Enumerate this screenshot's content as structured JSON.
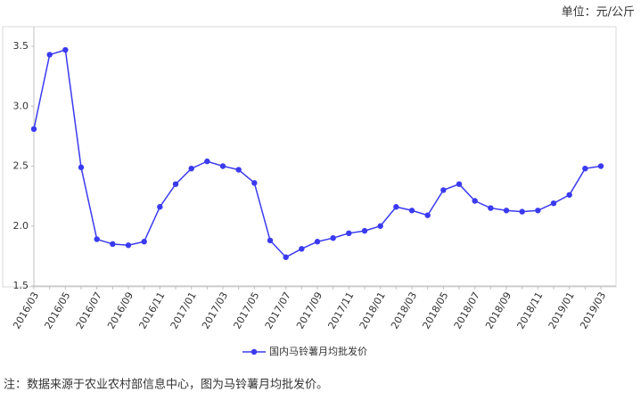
{
  "chart_data": {
    "type": "line",
    "unit_label": "单位：元/公斤",
    "note": "注：数据来源于农业农村部信息中心，图为马铃薯月均批发价。",
    "categories": [
      "2016/03",
      null,
      "2016/05",
      null,
      "2016/07",
      null,
      "2016/09",
      null,
      "2016/11",
      null,
      "2017/01",
      null,
      "2017/03",
      null,
      "2017/05",
      null,
      "2017/07",
      null,
      "2017/09",
      null,
      "2017/11",
      null,
      "2018/01",
      null,
      "2018/03",
      null,
      "2018/05",
      null,
      "2018/07",
      null,
      "2018/09",
      null,
      "2018/11",
      null,
      "2019/01",
      null,
      "2019/03"
    ],
    "series": [
      {
        "name": "国内马铃薯月均批发价",
        "color": "#3a3af0",
        "values": [
          2.81,
          3.43,
          3.47,
          2.49,
          1.89,
          1.85,
          1.84,
          1.87,
          2.16,
          2.35,
          2.48,
          2.54,
          2.5,
          2.47,
          2.36,
          1.88,
          1.74,
          1.81,
          1.87,
          1.9,
          1.94,
          1.96,
          2.0,
          2.16,
          2.13,
          2.09,
          2.3,
          2.35,
          2.21,
          2.15,
          2.13,
          2.12,
          2.13,
          2.19,
          2.26,
          2.48,
          2.5
        ]
      }
    ],
    "ylim": [
      1.5,
      3.5
    ],
    "yticks": [
      1.5,
      {
        "value": 2,
        "label": "2.0"
      },
      2.5,
      {
        "value": 3,
        "label": "3.0"
      },
      3.5
    ],
    "grid": false
  }
}
